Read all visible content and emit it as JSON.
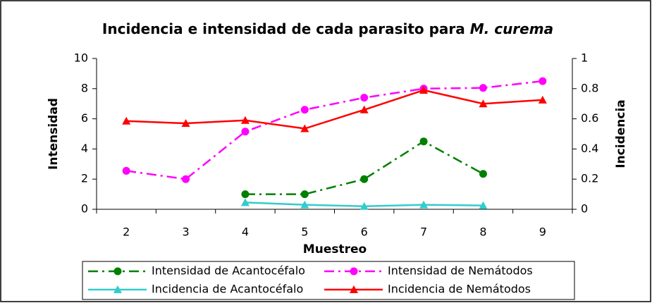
{
  "chart_data": {
    "type": "line",
    "title": "Incidencia e intensidad de cada parasito para",
    "title_italic": "M. curema",
    "xlabel": "Muestreo",
    "ylabel": "Intensidad",
    "y2label": "Incidencia",
    "categories": [
      "2",
      "3",
      "4",
      "5",
      "6",
      "7",
      "8",
      "9"
    ],
    "ylim": [
      0,
      10
    ],
    "yticks": [
      0,
      2,
      4,
      6,
      8,
      10
    ],
    "y2lim": [
      0,
      1
    ],
    "y2ticks": [
      0,
      0.2,
      0.4,
      0.6,
      0.8,
      1
    ],
    "series": [
      {
        "name": "Intensidad de Acantocéfalo",
        "color": "#008000",
        "dash": "dash-dot",
        "marker": "circle",
        "axis": "y",
        "values": [
          null,
          null,
          1,
          1,
          2,
          4.5,
          2.35,
          null
        ]
      },
      {
        "name": "Intensidad de Nemátodos",
        "color": "#ff00ff",
        "dash": "dash-dot",
        "marker": "circle",
        "axis": "y",
        "values": [
          2.55,
          2.0,
          5.15,
          6.6,
          7.4,
          8.0,
          8.05,
          8.5
        ]
      },
      {
        "name": "Incidencia de Acantocéfalo",
        "color": "#33cccc",
        "dash": "solid",
        "marker": "triangle",
        "axis": "y2",
        "values": [
          null,
          null,
          0.045,
          0.03,
          0.02,
          0.03,
          0.025,
          null
        ]
      },
      {
        "name": "Incidencia de Nemátodos",
        "color": "#ff0000",
        "dash": "solid",
        "marker": "triangle",
        "axis": "y2",
        "values": [
          0.585,
          0.57,
          0.59,
          0.535,
          0.66,
          0.79,
          0.7,
          0.725
        ]
      }
    ],
    "legend": "bottom",
    "grid": false
  }
}
